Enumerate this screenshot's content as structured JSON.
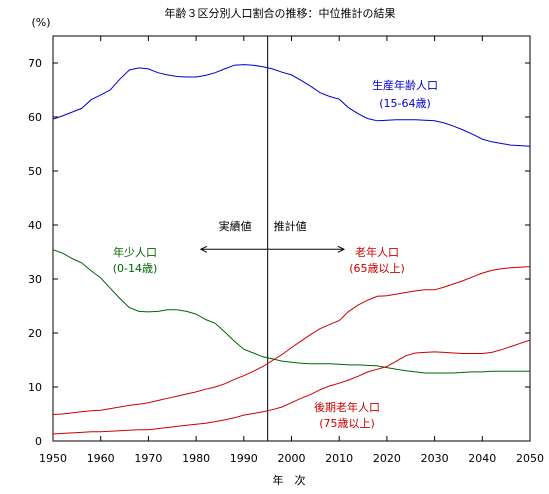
{
  "chart_data": {
    "type": "line",
    "title": "年齢３区分別人口割合の推移：中位推計の結果",
    "ylabel": "(%)",
    "xlabel": "年　次",
    "xlim": [
      1950,
      2050
    ],
    "ylim": [
      0,
      75
    ],
    "xticks": [
      1950,
      1960,
      1970,
      1980,
      1990,
      2000,
      2010,
      2020,
      2030,
      2040,
      2050
    ],
    "yticks": [
      0,
      10,
      20,
      30,
      40,
      50,
      60,
      70
    ],
    "grid": false,
    "divider_year": 1995,
    "annotations": {
      "actual": "実績値",
      "projected": "推計値",
      "arrow_from": 1981,
      "arrow_to": 2011,
      "arrow_y": 35.5
    },
    "series": [
      {
        "name": "生産年齢人口",
        "sublabel": "(15-64歳)",
        "color": "#0000cc",
        "x": [
          1950,
          1952,
          1954,
          1956,
          1958,
          1960,
          1962,
          1964,
          1966,
          1968,
          1970,
          1972,
          1974,
          1976,
          1978,
          1980,
          1982,
          1984,
          1986,
          1988,
          1990,
          1992,
          1994,
          1996,
          1998,
          2000,
          2002,
          2004,
          2006,
          2008,
          2010,
          2012,
          2014,
          2016,
          2018,
          2020,
          2022,
          2024,
          2026,
          2028,
          2030,
          2032,
          2034,
          2036,
          2038,
          2040,
          2042,
          2044,
          2046,
          2048,
          2050
        ],
        "values": [
          59.6,
          60.2,
          60.9,
          61.6,
          63.2,
          64.1,
          65.0,
          67.0,
          68.7,
          69.1,
          68.9,
          68.2,
          67.8,
          67.5,
          67.4,
          67.4,
          67.7,
          68.2,
          68.9,
          69.6,
          69.7,
          69.6,
          69.3,
          68.9,
          68.3,
          67.8,
          66.8,
          65.7,
          64.5,
          63.8,
          63.3,
          61.7,
          60.6,
          59.7,
          59.3,
          59.4,
          59.5,
          59.5,
          59.5,
          59.4,
          59.3,
          58.9,
          58.3,
          57.6,
          56.8,
          55.9,
          55.4,
          55.1,
          54.8,
          54.7,
          54.6
        ]
      },
      {
        "name": "年少人口",
        "sublabel": "(0-14歳)",
        "color": "#006600",
        "x": [
          1950,
          1952,
          1954,
          1956,
          1958,
          1960,
          1962,
          1964,
          1966,
          1968,
          1970,
          1972,
          1974,
          1976,
          1978,
          1980,
          1982,
          1984,
          1986,
          1988,
          1990,
          1992,
          1994,
          1996,
          1998,
          2000,
          2002,
          2004,
          2006,
          2008,
          2010,
          2012,
          2014,
          2016,
          2018,
          2020,
          2022,
          2024,
          2026,
          2028,
          2030,
          2032,
          2034,
          2036,
          2038,
          2040,
          2042,
          2044,
          2046,
          2048,
          2050
        ],
        "values": [
          35.4,
          34.8,
          33.8,
          33.0,
          31.5,
          30.2,
          28.3,
          26.4,
          24.7,
          24.0,
          23.9,
          24.0,
          24.3,
          24.3,
          24.0,
          23.5,
          22.5,
          21.8,
          20.2,
          18.5,
          17.0,
          16.3,
          15.6,
          15.2,
          14.8,
          14.6,
          14.4,
          14.3,
          14.3,
          14.3,
          14.2,
          14.1,
          14.1,
          14.0,
          13.9,
          13.6,
          13.3,
          13.0,
          12.8,
          12.6,
          12.6,
          12.6,
          12.6,
          12.7,
          12.8,
          12.8,
          12.9,
          12.9,
          12.9,
          12.9,
          12.9
        ]
      },
      {
        "name": "老年人口",
        "sublabel": "(65歳以上)",
        "color": "#cc0000",
        "x": [
          1950,
          1952,
          1954,
          1956,
          1958,
          1960,
          1962,
          1964,
          1966,
          1968,
          1970,
          1972,
          1974,
          1976,
          1978,
          1980,
          1982,
          1984,
          1986,
          1988,
          1990,
          1992,
          1994,
          1996,
          1998,
          2000,
          2002,
          2004,
          2006,
          2008,
          2010,
          2012,
          2014,
          2016,
          2018,
          2020,
          2022,
          2024,
          2026,
          2028,
          2030,
          2032,
          2034,
          2036,
          2038,
          2040,
          2042,
          2044,
          2046,
          2048,
          2050
        ],
        "values": [
          4.9,
          5.0,
          5.2,
          5.4,
          5.6,
          5.7,
          6.0,
          6.3,
          6.6,
          6.8,
          7.1,
          7.5,
          7.9,
          8.3,
          8.7,
          9.1,
          9.6,
          10.0,
          10.6,
          11.4,
          12.1,
          12.9,
          13.8,
          14.9,
          16.0,
          17.3,
          18.5,
          19.7,
          20.8,
          21.6,
          22.3,
          24.0,
          25.2,
          26.1,
          26.8,
          26.9,
          27.2,
          27.5,
          27.8,
          28.0,
          28.0,
          28.5,
          29.1,
          29.7,
          30.4,
          31.1,
          31.6,
          31.9,
          32.1,
          32.2,
          32.3
        ]
      },
      {
        "name": "後期老年人口",
        "sublabel": "(75歳以上)",
        "color": "#cc0000",
        "x": [
          1950,
          1952,
          1954,
          1956,
          1958,
          1960,
          1962,
          1964,
          1966,
          1968,
          1970,
          1972,
          1974,
          1976,
          1978,
          1980,
          1982,
          1984,
          1986,
          1988,
          1990,
          1992,
          1994,
          1996,
          1998,
          2000,
          2002,
          2004,
          2006,
          2008,
          2010,
          2012,
          2014,
          2016,
          2018,
          2020,
          2022,
          2024,
          2026,
          2028,
          2030,
          2032,
          2034,
          2036,
          2038,
          2040,
          2042,
          2044,
          2046,
          2048,
          2050
        ],
        "values": [
          1.3,
          1.4,
          1.5,
          1.6,
          1.7,
          1.7,
          1.8,
          1.9,
          2.0,
          2.1,
          2.1,
          2.3,
          2.5,
          2.7,
          2.9,
          3.1,
          3.3,
          3.6,
          3.9,
          4.3,
          4.8,
          5.1,
          5.4,
          5.8,
          6.3,
          7.1,
          7.9,
          8.6,
          9.5,
          10.2,
          10.7,
          11.3,
          12.0,
          12.8,
          13.3,
          13.8,
          14.8,
          15.8,
          16.3,
          16.4,
          16.5,
          16.4,
          16.3,
          16.2,
          16.2,
          16.2,
          16.4,
          16.9,
          17.5,
          18.1,
          18.7
        ]
      }
    ]
  }
}
